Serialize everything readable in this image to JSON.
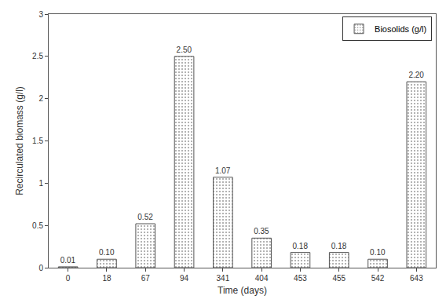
{
  "chart_data": {
    "type": "bar",
    "categories": [
      "0",
      "18",
      "67",
      "94",
      "341",
      "404",
      "453",
      "455",
      "542",
      "643"
    ],
    "series": [
      {
        "name": "Biosolids (g/l)",
        "color": "#e6e6e6",
        "values": [
          0.01,
          0.1,
          0.52,
          2.5,
          1.07,
          0.35,
          0.18,
          0.18,
          0.1,
          2.2
        ],
        "value_labels": [
          "0.01",
          "0.10",
          "0.52",
          "2.50",
          "1.07",
          "0.35",
          "0.18",
          "0.18",
          "0.10",
          "2.20"
        ]
      }
    ],
    "x_label": "Time (days)",
    "y_label": "Recirculated biomass (g/l)",
    "ylim": [
      0,
      3
    ],
    "yticks": [
      0,
      0.5,
      1,
      1.5,
      2,
      2.5,
      3
    ],
    "grid": false,
    "legend": "upper right",
    "data_labels": true
  }
}
